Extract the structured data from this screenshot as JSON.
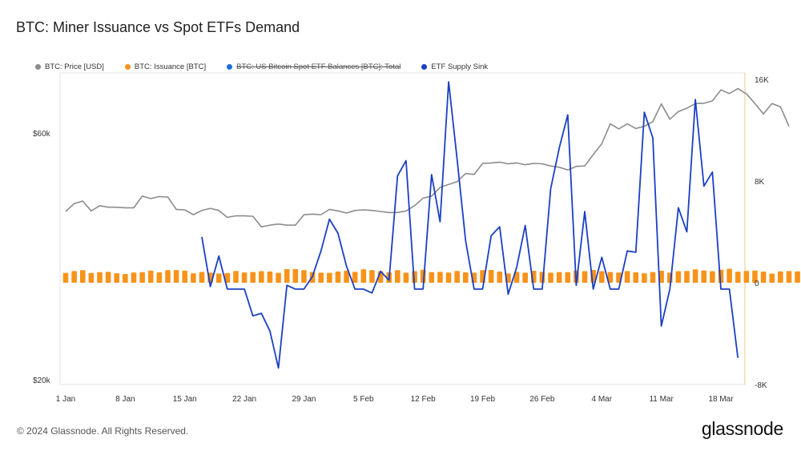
{
  "title": "BTC: Miner Issuance vs Spot ETFs Demand",
  "footer": {
    "copyright": "© 2024 Glassnode. All Rights Reserved.",
    "brand": "glassnode"
  },
  "legend": [
    {
      "label": "BTC: Price [USD]",
      "color": "#8c8c8c",
      "visible": true
    },
    {
      "label": "BTC: Issuance [BTC]",
      "color": "#f7931a",
      "visible": true
    },
    {
      "label": "BTC: US Bitcoin Spot ETF Balances [BTC]: Total",
      "color": "#1e6fd9",
      "visible": false
    },
    {
      "label": "ETF Supply Sink",
      "color": "#1a3fc4",
      "visible": true
    }
  ],
  "chart_data": {
    "type": "line",
    "title": "BTC: Miner Issuance vs Spot ETFs Demand",
    "x_tick_labels": [
      "1 Jan",
      "8 Jan",
      "15 Jan",
      "22 Jan",
      "29 Jan",
      "5 Feb",
      "12 Feb",
      "19 Feb",
      "26 Feb",
      "4 Mar",
      "11 Mar",
      "18 Mar"
    ],
    "x_domain_days": [
      0,
      79
    ],
    "left_axis": {
      "scale": "log",
      "tick_labels": [
        "$20k",
        "$60k"
      ],
      "tick_values": [
        20000,
        60000
      ],
      "range": [
        20000,
        90000
      ]
    },
    "right_axis": {
      "tick_labels": [
        "-8K",
        "0",
        "8K",
        "16K"
      ],
      "tick_values": [
        -8000,
        0,
        8000,
        16000
      ],
      "range": [
        -8000,
        16500
      ]
    },
    "grid": false,
    "legend_position": "top-left",
    "series": [
      {
        "name": "BTC: Price [USD]",
        "axis": "left",
        "color": "#8c8c8c",
        "style": "line",
        "start_day": 0,
        "values": [
          42300,
          43800,
          44300,
          42400,
          43400,
          43100,
          43100,
          43000,
          43000,
          45300,
          44800,
          45200,
          45100,
          42700,
          42600,
          41700,
          42500,
          42900,
          42500,
          41200,
          41500,
          41500,
          41400,
          39500,
          39800,
          40000,
          39800,
          39800,
          41700,
          41800,
          41700,
          42700,
          42400,
          42000,
          42500,
          42600,
          42500,
          42300,
          42100,
          42100,
          42400,
          43400,
          44900,
          45300,
          47100,
          47700,
          48300,
          50100,
          49900,
          52400,
          52500,
          52700,
          52300,
          52500,
          52100,
          52400,
          52300,
          51800,
          51500,
          50900,
          51700,
          51800,
          54500,
          57200,
          62500,
          61100,
          62500,
          61200,
          61800,
          63100,
          68300,
          63800,
          66000,
          67000,
          68400,
          68500,
          69200,
          72700,
          71500,
          73100,
          71400,
          68400,
          65300,
          68400,
          67400,
          61800
        ]
      },
      {
        "name": "BTC: Issuance [BTC]",
        "axis": "right",
        "color": "#f7931a",
        "style": "bar",
        "start_day": 0,
        "values": [
          780,
          920,
          990,
          770,
          830,
          860,
          750,
          690,
          800,
          830,
          950,
          820,
          990,
          1000,
          950,
          750,
          850,
          790,
          730,
          770,
          930,
          810,
          850,
          910,
          890,
          780,
          1080,
          1080,
          990,
          850,
          790,
          780,
          890,
          950,
          860,
          1060,
          990,
          910,
          820,
          990,
          790,
          910,
          1020,
          830,
          860,
          800,
          930,
          820,
          790,
          990,
          1010,
          880,
          730,
          860,
          790,
          940,
          860,
          790,
          840,
          830,
          960,
          910,
          1010,
          910,
          850,
          800,
          920,
          820,
          750,
          840,
          940,
          790,
          910,
          930,
          1050,
          970,
          910,
          1020,
          1100,
          870,
          930,
          960,
          880,
          720,
          900,
          920,
          900
        ]
      },
      {
        "name": "ETF Supply Sink",
        "axis": "right",
        "color": "#1a3fc4",
        "style": "line",
        "start_day": 16,
        "values": [
          3600,
          -300,
          2100,
          -500,
          -500,
          -500,
          -2600,
          -2400,
          -3800,
          -6700,
          -200,
          -500,
          -500,
          500,
          2500,
          5000,
          3900,
          1300,
          -500,
          -500,
          -800,
          900,
          200,
          8400,
          9600,
          -500,
          -500,
          8500,
          4800,
          15800,
          9700,
          3300,
          -500,
          -500,
          3700,
          4400,
          -900,
          1200,
          4500,
          -500,
          -500,
          7400,
          10600,
          13200,
          -200,
          5600,
          -500,
          2000,
          -500,
          -500,
          2500,
          2400,
          13400,
          11400,
          -3400,
          -500,
          5900,
          4000,
          14400,
          7600,
          8700,
          -500,
          -500,
          -5900
        ]
      }
    ]
  }
}
